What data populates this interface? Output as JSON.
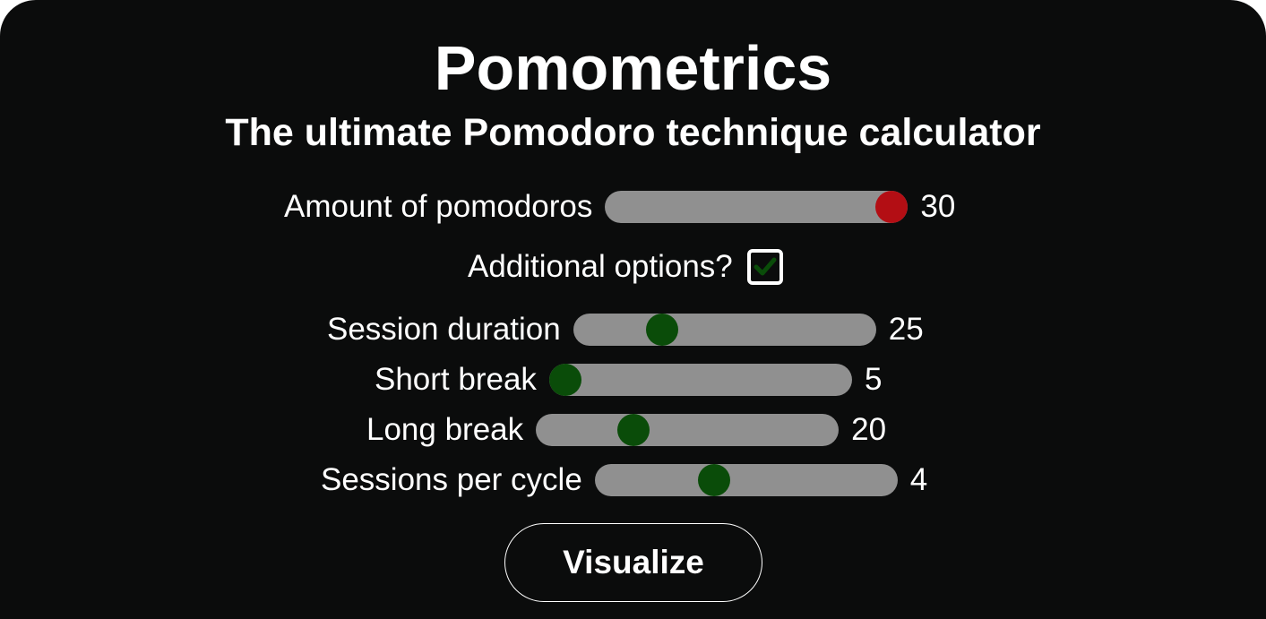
{
  "header": {
    "title": "Pomometrics",
    "subtitle": "The ultimate Pomodoro technique calculator"
  },
  "pomodoros": {
    "label": "Amount of pomodoros",
    "value": "30",
    "slider_fraction": 1.0,
    "thumb_color": "#b30e14"
  },
  "additional_options": {
    "label": "Additional options?",
    "checked": true,
    "check_color": "#0a4c09"
  },
  "options": {
    "session_duration": {
      "label": "Session duration",
      "value": "25",
      "slider_fraction": 0.27
    },
    "short_break": {
      "label": "Short break",
      "value": "5",
      "slider_fraction": 0.0
    },
    "long_break": {
      "label": "Long break",
      "value": "20",
      "slider_fraction": 0.3
    },
    "sessions_per_cycle": {
      "label": "Sessions per cycle",
      "value": "4",
      "slider_fraction": 0.38
    }
  },
  "actions": {
    "visualize_label": "Visualize"
  },
  "colors": {
    "background": "#0b0c0c",
    "track": "#909090",
    "thumb_green": "#0a4c09",
    "thumb_red": "#b30e14",
    "text": "#ffffff"
  }
}
